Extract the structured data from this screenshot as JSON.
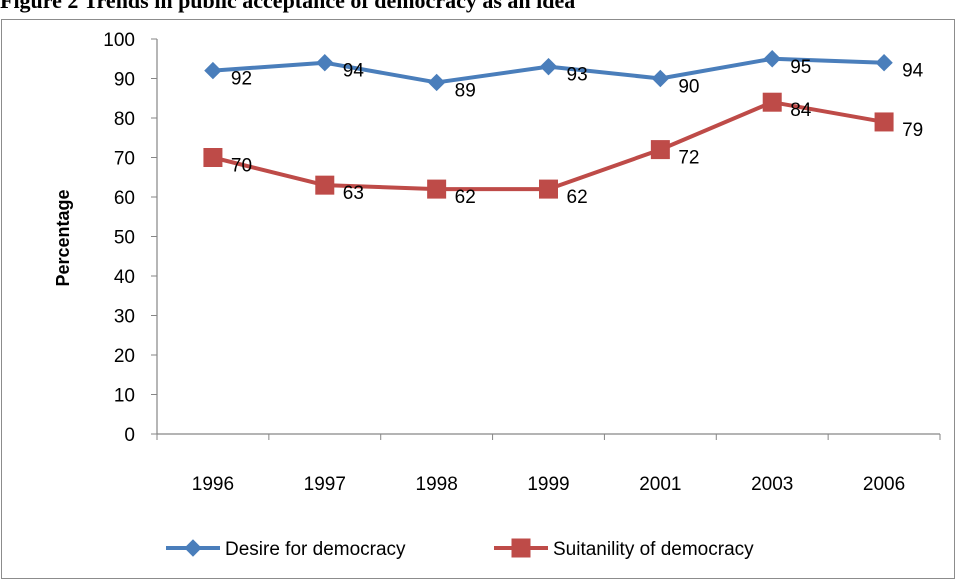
{
  "figure_title": "Figure 2 Trends in public acceptance of democracy as an idea",
  "chart_data": {
    "type": "line",
    "title": "Figure 2 Trends in public acceptance of democracy as an idea",
    "xlabel": "",
    "ylabel": "Percentage",
    "categories": [
      "1996",
      "1997",
      "1998",
      "1999",
      "2001",
      "2003",
      "2006"
    ],
    "ylim": [
      0,
      100
    ],
    "yticks": [
      0,
      10,
      20,
      30,
      40,
      50,
      60,
      70,
      80,
      90,
      100
    ],
    "grid": false,
    "legend_position": "bottom",
    "series": [
      {
        "name": "Desire for democracy",
        "values": [
          92,
          94,
          89,
          93,
          90,
          95,
          94
        ],
        "color": "#4a7ebb",
        "marker": "diamond"
      },
      {
        "name": "Suitanility of democracy",
        "values": [
          70,
          63,
          62,
          62,
          72,
          84,
          79
        ],
        "color": "#be4b48",
        "marker": "square"
      }
    ]
  }
}
